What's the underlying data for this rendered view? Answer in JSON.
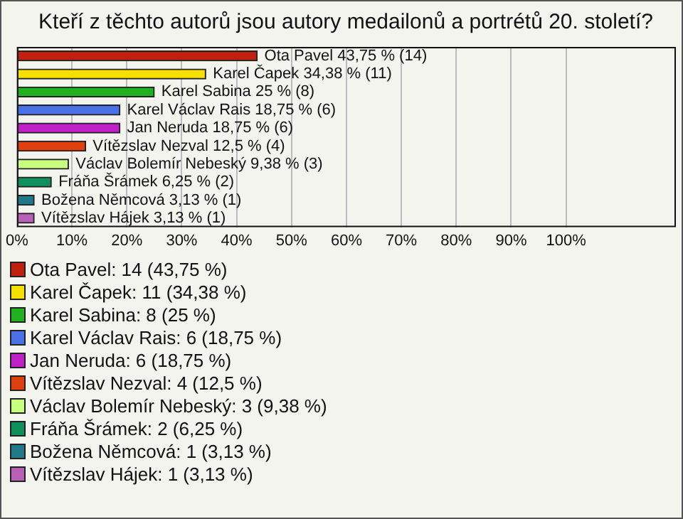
{
  "chart_data": {
    "type": "bar",
    "title": "Kteří z těchto autorů jsou autory medailonů a portrétů 20. století?",
    "orientation": "horizontal",
    "stacked": true,
    "categories": [
      null,
      null,
      null,
      null,
      null,
      null,
      null,
      null,
      null,
      null
    ],
    "series": [
      {
        "name": "Ota Pavel: 14 (43,75 %)",
        "color": "#c0200e",
        "values": [
          43.75,
          null,
          null,
          null,
          null,
          null,
          null,
          null,
          null,
          null
        ],
        "value_labels": [
          "Ota Pavel 43,75 % (14)",
          null,
          null,
          null,
          null,
          null,
          null,
          null,
          null,
          null
        ]
      },
      {
        "name": "Karel Čapek: 11 (34,38 %)",
        "color": "#f5e000",
        "values": [
          null,
          34.38,
          null,
          null,
          null,
          null,
          null,
          null,
          null,
          null
        ],
        "value_labels": [
          null,
          "Karel Čapek 34,38 % (11)",
          null,
          null,
          null,
          null,
          null,
          null,
          null,
          null
        ]
      },
      {
        "name": "Karel Sabina: 8 (25 %)",
        "color": "#20b020",
        "values": [
          null,
          null,
          25,
          null,
          null,
          null,
          null,
          null,
          null,
          null
        ],
        "value_labels": [
          null,
          null,
          "Karel Sabina 25 % (8)",
          null,
          null,
          null,
          null,
          null,
          null,
          null
        ]
      },
      {
        "name": "Karel Václav Rais: 6 (18,75 %)",
        "color": "#4a70e8",
        "values": [
          null,
          null,
          null,
          18.75,
          null,
          null,
          null,
          null,
          null,
          null
        ],
        "value_labels": [
          null,
          null,
          null,
          "Karel Václav Rais 18,75 % (6)",
          null,
          null,
          null,
          null,
          null,
          null
        ]
      },
      {
        "name": "Jan Neruda: 6 (18,75 %)",
        "color": "#c020c8",
        "values": [
          null,
          null,
          null,
          null,
          18.75,
          null,
          null,
          null,
          null,
          null
        ],
        "value_labels": [
          null,
          null,
          null,
          null,
          "Jan Neruda 18,75 % (6)",
          null,
          null,
          null,
          null,
          null
        ]
      },
      {
        "name": "Vítězslav Nezval: 4 (12,5 %)",
        "color": "#e04010",
        "values": [
          null,
          null,
          null,
          null,
          null,
          12.5,
          null,
          null,
          null,
          null
        ],
        "value_labels": [
          null,
          null,
          null,
          null,
          null,
          "Vítězslav Nezval 12,5 % (4)",
          null,
          null,
          null,
          null
        ]
      },
      {
        "name": "Václav Bolemír Nebeský: 3 (9,38 %)",
        "color": "#c8ff80",
        "values": [
          null,
          null,
          null,
          null,
          null,
          null,
          9.38,
          null,
          null,
          null
        ],
        "value_labels": [
          null,
          null,
          null,
          null,
          null,
          null,
          "Václav Bolemír Nebeský 9,38 % (3)",
          null,
          null,
          null
        ]
      },
      {
        "name": "Fráňa Šrámek: 2 (6,25 %)",
        "color": "#10905a",
        "values": [
          null,
          null,
          null,
          null,
          null,
          null,
          null,
          6.25,
          null,
          null
        ],
        "value_labels": [
          null,
          null,
          null,
          null,
          null,
          null,
          null,
          "Fráňa Šrámek 6,25 % (2)",
          null,
          null
        ]
      },
      {
        "name": "Božena Němcová: 1 (3,13 %)",
        "color": "#207888",
        "values": [
          null,
          null,
          null,
          null,
          null,
          null,
          null,
          null,
          3.13,
          null
        ],
        "value_labels": [
          null,
          null,
          null,
          null,
          null,
          null,
          null,
          null,
          "Božena Němcová 3,13 % (1)",
          null
        ]
      },
      {
        "name": "Vítězslav Hájek: 1 (3,13 %)",
        "color": "#b860b8",
        "values": [
          null,
          null,
          null,
          null,
          null,
          null,
          null,
          null,
          null,
          3.13
        ],
        "value_labels": [
          null,
          null,
          null,
          null,
          null,
          null,
          null,
          null,
          null,
          "Vítězslav Hájek 3,13 % (1)"
        ]
      }
    ],
    "xlim": [
      0,
      120
    ],
    "xticks": [
      {
        "value": 0,
        "label": "0%"
      },
      {
        "value": 10,
        "label": "10%"
      },
      {
        "value": 20,
        "label": "20%"
      },
      {
        "value": 30,
        "label": "30%"
      },
      {
        "value": 40,
        "label": "40%"
      },
      {
        "value": 50,
        "label": "50%"
      },
      {
        "value": 60,
        "label": "60%"
      },
      {
        "value": 70,
        "label": "70%"
      },
      {
        "value": 80,
        "label": "80%"
      },
      {
        "value": 90,
        "label": "90%"
      },
      {
        "value": 100,
        "label": "100%"
      }
    ],
    "grid": "x",
    "tick_labels": "x",
    "legend": "bottom"
  }
}
